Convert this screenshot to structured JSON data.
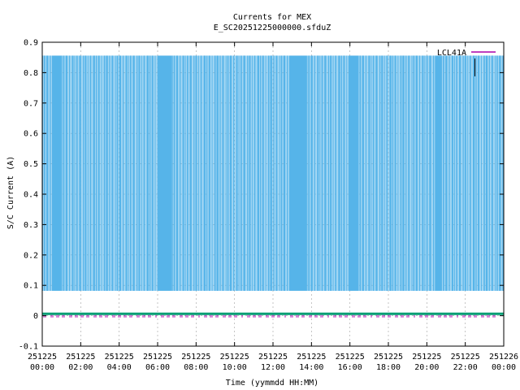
{
  "chart_data": {
    "type": "line",
    "title": "Currents for MEX",
    "subtitle": "E_SC20251225000000.sfduZ",
    "xlabel": "Time (yymmdd HH:MM)",
    "ylabel": "S/C Current (A)",
    "xlim": [
      "2025-12-25 00:00",
      "2025-12-26 00:00"
    ],
    "ylim": [
      -0.1,
      0.9
    ],
    "yticks": [
      "-0.1",
      "0",
      "0.1",
      "0.2",
      "0.3",
      "0.4",
      "0.5",
      "0.6",
      "0.7",
      "0.8",
      "0.9"
    ],
    "xticks": [
      [
        "251225",
        "00:00"
      ],
      [
        "251225",
        "02:00"
      ],
      [
        "251225",
        "04:00"
      ],
      [
        "251225",
        "06:00"
      ],
      [
        "251225",
        "08:00"
      ],
      [
        "251225",
        "10:00"
      ],
      [
        "251225",
        "12:00"
      ],
      [
        "251225",
        "14:00"
      ],
      [
        "251225",
        "16:00"
      ],
      [
        "251225",
        "18:00"
      ],
      [
        "251225",
        "20:00"
      ],
      [
        "251225",
        "22:00"
      ],
      [
        "251226",
        "00:00"
      ]
    ],
    "grid": true,
    "legend_position": "top-right",
    "series": [
      {
        "name": "LCL41A",
        "color": "#aa00aa",
        "description_values": "switching between about 0.082 A (low) and 0.856 A (high) through the whole day, with solid-high blocks",
        "low": 0.082,
        "high": 0.856,
        "segments": [
          {
            "start": "2025-12-25 00:00",
            "end": "2025-12-25 00:30",
            "mode": "toggle"
          },
          {
            "start": "2025-12-25 00:30",
            "end": "2025-12-25 01:00",
            "mode": "high"
          },
          {
            "start": "2025-12-25 01:00",
            "end": "2025-12-25 06:00",
            "mode": "toggle"
          },
          {
            "start": "2025-12-25 06:00",
            "end": "2025-12-25 06:45",
            "mode": "high"
          },
          {
            "start": "2025-12-25 06:45",
            "end": "2025-12-25 12:50",
            "mode": "toggle"
          },
          {
            "start": "2025-12-25 12:50",
            "end": "2025-12-25 13:45",
            "mode": "high"
          },
          {
            "start": "2025-12-25 13:45",
            "end": "2025-12-25 15:55",
            "mode": "toggle"
          },
          {
            "start": "2025-12-25 15:55",
            "end": "2025-12-25 16:25",
            "mode": "high"
          },
          {
            "start": "2025-12-25 16:25",
            "end": "2025-12-25 20:25",
            "mode": "toggle"
          },
          {
            "start": "2025-12-25 20:25",
            "end": "2025-12-25 20:45",
            "mode": "high"
          },
          {
            "start": "2025-12-25 20:45",
            "end": "2025-12-26 00:00",
            "mode": "toggle"
          }
        ]
      },
      {
        "name": "",
        "color": "#009e73",
        "description_values": "near zero (about 0.005 A) all day",
        "value": 0.005
      },
      {
        "name": "",
        "color": "#56b4e9",
        "description_values": "main fill color of the switching trace",
        "value": null
      }
    ]
  }
}
